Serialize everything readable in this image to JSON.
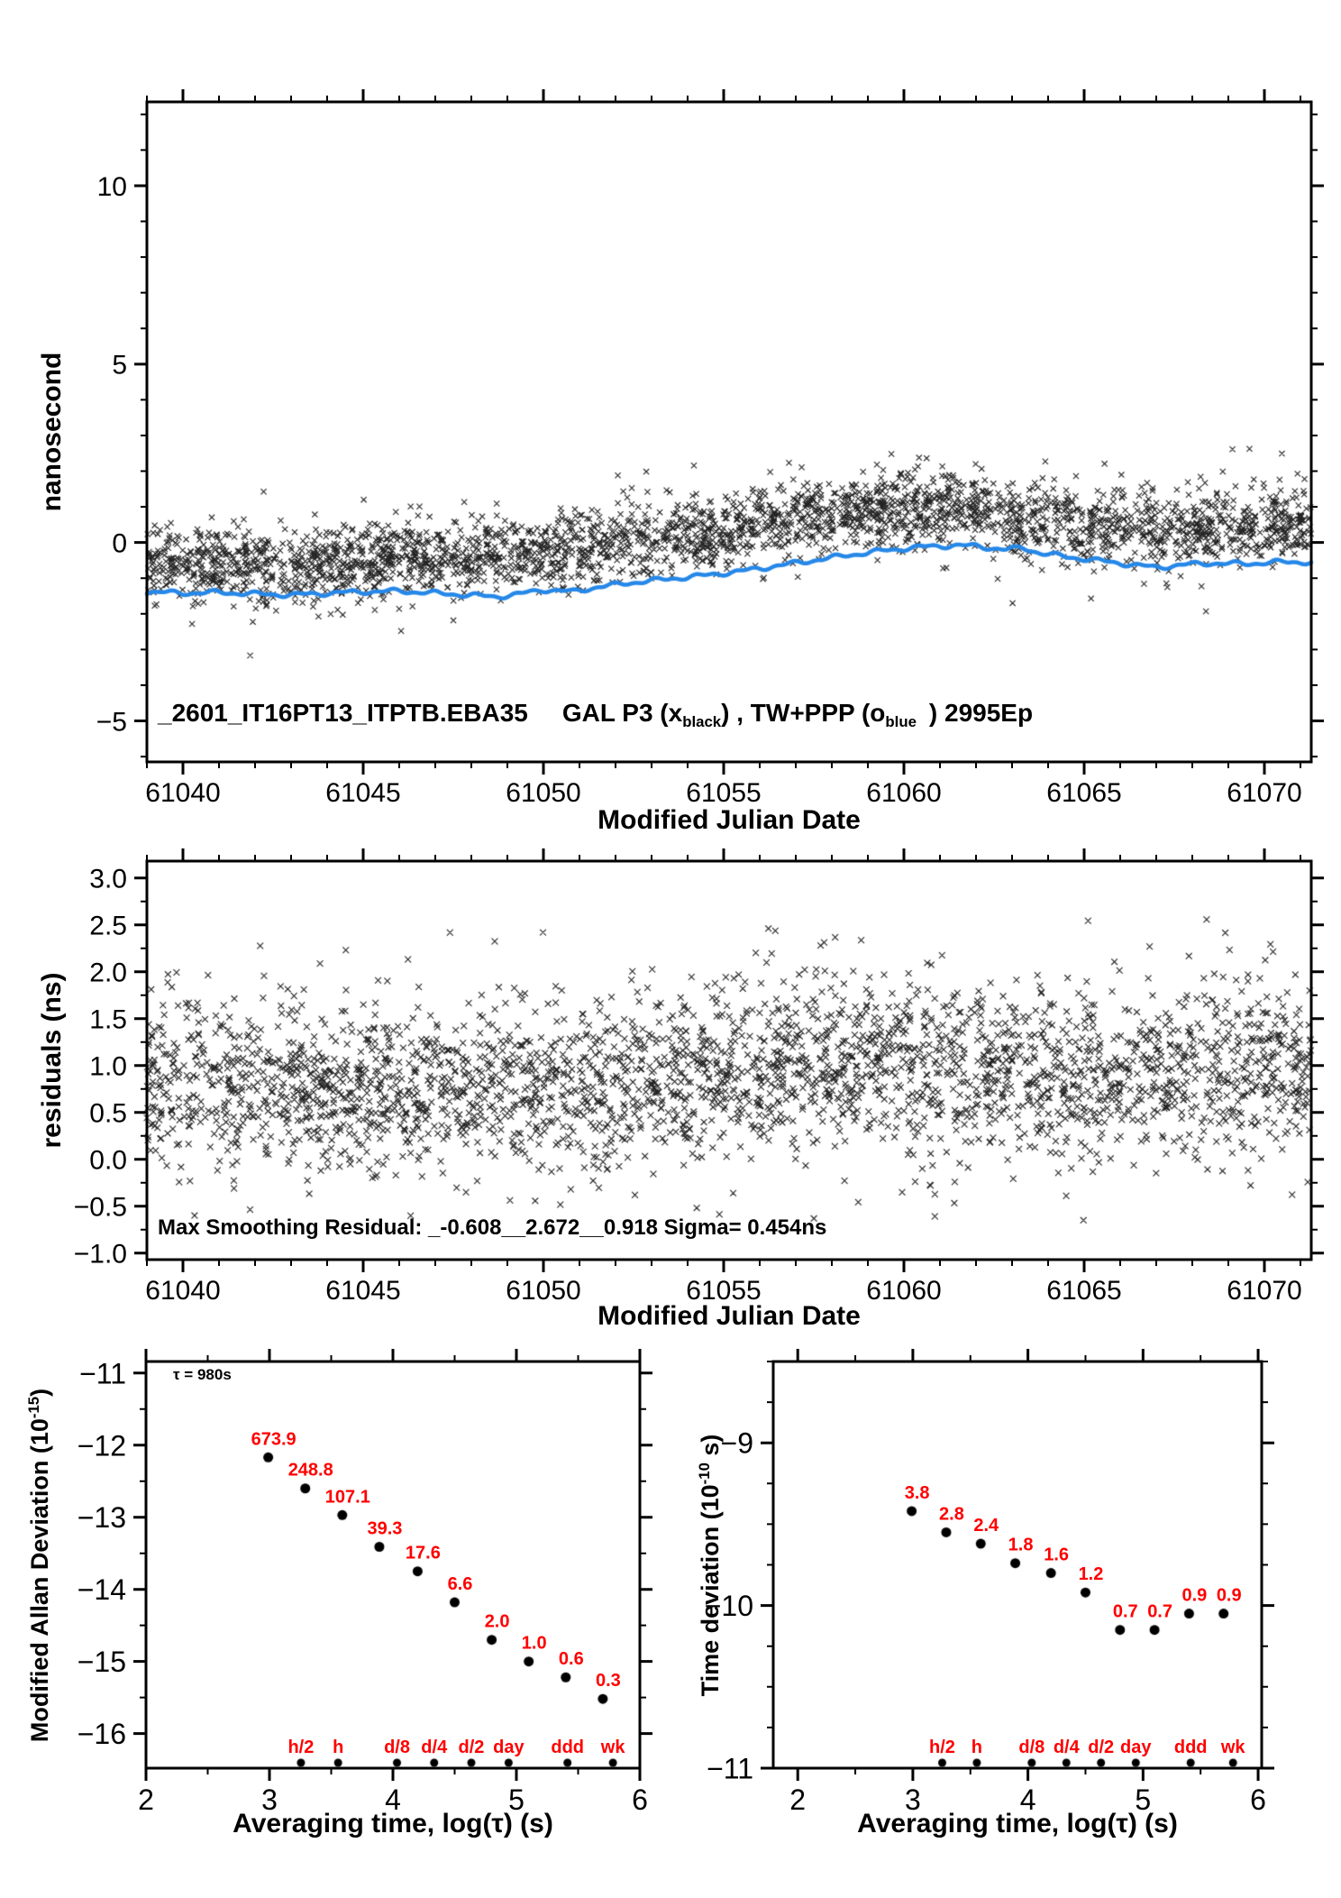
{
  "colors": {
    "red": "#ff0000",
    "blue": "#2688e8",
    "black": "#111111"
  },
  "title": {
    "p1": "_2601_IT16PT13_ITPTB.EBA35",
    "p2": "GAL P3 (x",
    "p2sub": "black",
    "p3": ") ,  TW+PPP (o",
    "p3sub": "blue",
    "p4": ")  2995Ep"
  },
  "top_panel": {
    "ylabel": "nanosecond",
    "xlabel": "Modified Julian Date"
  },
  "mid_panel": {
    "ylabel": "residuals (ns)",
    "xlabel": "Modified Julian Date",
    "stats": "Max Smoothing Residual: _-0.608__2.672__0.918  Sigma= 0.454ns"
  },
  "mdev_panel": {
    "ylabel_pre": "Modified Allan Deviation (10",
    "ylabel_exp": "-15",
    "ylabel_post": ")",
    "xlabel": "Averaging time, log(τ) (s)",
    "annotation": "τ = 980s"
  },
  "tdev_panel": {
    "ylabel_pre": "Time deviation (10",
    "ylabel_exp": "-10",
    "ylabel_post": " s)",
    "xlabel": "Averaging time, log(τ) (s)"
  },
  "time_markers": [
    {
      "label": "h/2",
      "log_tau": 3.255
    },
    {
      "label": "h",
      "log_tau": 3.556
    },
    {
      "label": "d/8",
      "log_tau": 4.033
    },
    {
      "label": "d/4",
      "log_tau": 4.334
    },
    {
      "label": "d/2",
      "log_tau": 4.635
    },
    {
      "label": "day",
      "log_tau": 4.937
    },
    {
      "label": "ddd",
      "log_tau": 5.414
    },
    {
      "label": "wk",
      "log_tau": 5.782
    }
  ],
  "chart_data": [
    {
      "id": "clock-difference",
      "type": "scatter",
      "title": "_2601_IT16PT13_ITPTB.EBA35  GAL P3 (x black) , TW+PPP (o blue)  2995Ep",
      "xlabel": "Modified Julian Date",
      "ylabel": "nanosecond",
      "xlim": [
        61039,
        61071.3
      ],
      "ylim": [
        -6.15,
        12.35
      ],
      "grid": false,
      "xticks": [
        {
          "v": 61040,
          "label": "61040"
        },
        {
          "v": 61045,
          "label": "61045"
        },
        {
          "v": 61050,
          "label": "61050"
        },
        {
          "v": 61055,
          "label": "61055"
        },
        {
          "v": 61060,
          "label": "61060"
        },
        {
          "v": 61065,
          "label": "61065"
        },
        {
          "v": 61070,
          "label": "61070"
        }
      ],
      "yticks": [
        {
          "v": -5,
          "label": "−5"
        },
        {
          "v": 0,
          "label": "0"
        },
        {
          "v": 5,
          "label": "5"
        },
        {
          "v": 10,
          "label": "10"
        }
      ],
      "x_minor_step": 1,
      "y_minor_step": 1,
      "series": [
        {
          "name": "GAL P3 (x black)",
          "kind": "scatter-x",
          "n": 2995,
          "sigma": 0.5,
          "seed": 42,
          "trend": [
            [
              61039,
              -0.55
            ],
            [
              61041,
              -0.65
            ],
            [
              61043,
              -0.63
            ],
            [
              61045,
              -0.5
            ],
            [
              61047,
              -0.4
            ],
            [
              61049,
              -0.28
            ],
            [
              61051,
              -0.12
            ],
            [
              61053,
              0.1
            ],
            [
              61055,
              0.35
            ],
            [
              61057,
              0.65
            ],
            [
              61059,
              0.9
            ],
            [
              61060,
              0.95
            ],
            [
              61061,
              0.95
            ],
            [
              61062,
              0.85
            ],
            [
              61063,
              0.65
            ],
            [
              61064,
              0.5
            ],
            [
              61065,
              0.42
            ],
            [
              61066,
              0.38
            ],
            [
              61067,
              0.3
            ],
            [
              61068,
              0.35
            ],
            [
              61069,
              0.42
            ],
            [
              61070,
              0.45
            ],
            [
              61071.3,
              0.5
            ]
          ]
        },
        {
          "name": "TW+PPP (o blue)",
          "kind": "line",
          "points": [
            [
              61039,
              -1.38
            ],
            [
              61040,
              -1.42
            ],
            [
              61041,
              -1.4
            ],
            [
              61042,
              -1.44
            ],
            [
              61043,
              -1.47
            ],
            [
              61044,
              -1.42
            ],
            [
              61045,
              -1.38
            ],
            [
              61046,
              -1.36
            ],
            [
              61047,
              -1.42
            ],
            [
              61048,
              -1.48
            ],
            [
              61048.7,
              -1.52
            ],
            [
              61049.3,
              -1.45
            ],
            [
              61050,
              -1.32
            ],
            [
              61050.8,
              -1.38
            ],
            [
              61051.5,
              -1.25
            ],
            [
              61052.5,
              -1.12
            ],
            [
              61053.5,
              -1.02
            ],
            [
              61054.5,
              -0.92
            ],
            [
              61055.5,
              -0.8
            ],
            [
              61056.5,
              -0.65
            ],
            [
              61057.5,
              -0.5
            ],
            [
              61058.5,
              -0.35
            ],
            [
              61059.5,
              -0.22
            ],
            [
              61060.5,
              -0.12
            ],
            [
              61061.5,
              -0.08
            ],
            [
              61062,
              -0.1
            ],
            [
              61062.8,
              -0.2
            ],
            [
              61063.3,
              -0.15
            ],
            [
              61063.8,
              -0.3
            ],
            [
              61064.5,
              -0.4
            ],
            [
              61065.5,
              -0.52
            ],
            [
              61066.3,
              -0.62
            ],
            [
              61067,
              -0.7
            ],
            [
              61067.8,
              -0.62
            ],
            [
              61068.5,
              -0.58
            ],
            [
              61069.5,
              -0.6
            ],
            [
              61070.3,
              -0.55
            ],
            [
              61071.3,
              -0.55
            ]
          ]
        }
      ]
    },
    {
      "id": "smoothing-residuals",
      "type": "scatter",
      "xlabel": "Modified Julian Date",
      "ylabel": "residuals (ns)",
      "annotation": "Max Smoothing Residual: _-0.608__2.672__0.918  Sigma= 0.454ns",
      "min_residual": -0.608,
      "max_residual": 2.672,
      "mean_residual": 0.918,
      "sigma_ns": 0.454,
      "xlim": [
        61039,
        61071.3
      ],
      "ylim": [
        -1.07,
        3.18
      ],
      "grid": false,
      "xticks": [
        {
          "v": 61040,
          "label": "61040"
        },
        {
          "v": 61045,
          "label": "61045"
        },
        {
          "v": 61050,
          "label": "61050"
        },
        {
          "v": 61055,
          "label": "61055"
        },
        {
          "v": 61060,
          "label": "61060"
        },
        {
          "v": 61065,
          "label": "61065"
        },
        {
          "v": 61070,
          "label": "61070"
        }
      ],
      "yticks": [
        {
          "v": 3.0,
          "label": "3.0"
        },
        {
          "v": 2.5,
          "label": "2.5"
        },
        {
          "v": 2.0,
          "label": "2.0"
        },
        {
          "v": 1.5,
          "label": "1.5"
        },
        {
          "v": 1.0,
          "label": "1.0"
        },
        {
          "v": 0.5,
          "label": "0.5"
        },
        {
          "v": 0.0,
          "label": "0.0"
        },
        {
          "v": -0.5,
          "label": "−0.5"
        },
        {
          "v": -1.0,
          "label": "−1.0"
        }
      ],
      "x_minor_step": 1,
      "y_minor_step": 0.25,
      "series": [
        {
          "name": "residuals",
          "kind": "scatter-x",
          "n": 2995,
          "sigma": 0.44,
          "seed": 7,
          "clip": [
            -0.66,
            2.76
          ],
          "trend": [
            [
              61039,
              0.82
            ],
            [
              61043,
              0.78
            ],
            [
              61047,
              0.74
            ],
            [
              61051,
              0.8
            ],
            [
              61055,
              0.92
            ],
            [
              61057,
              1.02
            ],
            [
              61059,
              1.05
            ],
            [
              61061,
              0.95
            ],
            [
              61063,
              0.88
            ],
            [
              61065,
              0.9
            ],
            [
              61067,
              0.98
            ],
            [
              61069,
              1.0
            ],
            [
              61071.3,
              1.02
            ]
          ]
        }
      ]
    },
    {
      "id": "modified-allan-deviation",
      "type": "scatter",
      "xlabel": "Averaging time, log(τ) (s)",
      "ylabel": "Modified Allan Deviation (10^-15)",
      "annotation": "τ = 980s",
      "xlim": [
        2,
        6
      ],
      "ylim": [
        -16.48,
        -10.84
      ],
      "grid": false,
      "xticks": [
        {
          "v": 2,
          "label": "2"
        },
        {
          "v": 3,
          "label": "3"
        },
        {
          "v": 4,
          "label": "4"
        },
        {
          "v": 5,
          "label": "5"
        },
        {
          "v": 6,
          "label": "6"
        }
      ],
      "yticks": [
        {
          "v": -11,
          "label": "−11"
        },
        {
          "v": -12,
          "label": "−12"
        },
        {
          "v": -13,
          "label": "−13"
        },
        {
          "v": -14,
          "label": "−14"
        },
        {
          "v": -15,
          "label": "−15"
        },
        {
          "v": -16,
          "label": "−16"
        }
      ],
      "x_minor_step": 0.5,
      "y_minor_step": 0.5,
      "x_log_tau": [
        2.99,
        3.29,
        3.59,
        3.89,
        4.2,
        4.5,
        4.8,
        5.1,
        5.4,
        5.7
      ],
      "values_1e15": [
        673.9,
        248.8,
        107.1,
        39.3,
        17.6,
        6.6,
        2.0,
        1.0,
        0.6,
        0.3
      ],
      "point_labels": [
        "673.9",
        "248.8",
        "107.1",
        "39.3",
        "17.6",
        "6.6",
        "2.0",
        "1.0",
        "0.6",
        "0.3"
      ],
      "y_log": [
        -12.17,
        -12.6,
        -12.97,
        -13.41,
        -13.75,
        -14.18,
        -14.7,
        -15.0,
        -15.22,
        -15.52
      ]
    },
    {
      "id": "time-deviation",
      "type": "scatter",
      "xlabel": "Averaging time, log(τ) (s)",
      "ylabel": "Time deviation (10^-10 s)",
      "xlim": [
        1.787,
        6.031
      ],
      "ylim": [
        -11,
        -8.5
      ],
      "grid": false,
      "xticks": [
        {
          "v": 2,
          "label": "2"
        },
        {
          "v": 3,
          "label": "3"
        },
        {
          "v": 4,
          "label": "4"
        },
        {
          "v": 5,
          "label": "5"
        },
        {
          "v": 6,
          "label": "6"
        }
      ],
      "yticks": [
        {
          "v": -9,
          "label": "−9"
        },
        {
          "v": -10,
          "label": "−10"
        },
        {
          "v": -11,
          "label": "−11"
        }
      ],
      "x_minor_step": 0.5,
      "y_minor_step": 0.25,
      "x_log_tau": [
        2.99,
        3.29,
        3.59,
        3.89,
        4.2,
        4.5,
        4.8,
        5.1,
        5.4,
        5.7
      ],
      "values_1e10": [
        3.8,
        2.8,
        2.4,
        1.8,
        1.6,
        1.2,
        0.7,
        0.7,
        0.9,
        0.9
      ],
      "point_labels": [
        "3.8",
        "2.8",
        "2.4",
        "1.8",
        "1.6",
        "1.2",
        "0.7",
        "0.7",
        "0.9",
        "0.9"
      ],
      "y_log": [
        -9.42,
        -9.55,
        -9.62,
        -9.74,
        -9.8,
        -9.92,
        -10.15,
        -10.15,
        -10.05,
        -10.05
      ]
    }
  ]
}
